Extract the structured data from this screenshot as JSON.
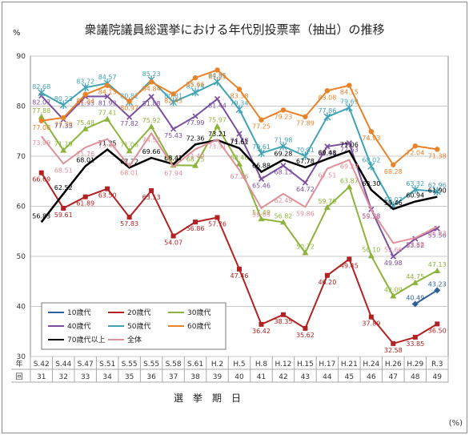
{
  "chart_data": {
    "type": "line",
    "title": "衆議院議員総選挙における年代別投票率（抽出）の推移",
    "ylabel": "%",
    "unit_note": "(%)",
    "x_axis_title": "選　挙　期　日",
    "row_label_nen": "年",
    "row_label_kai": "回",
    "ylim": [
      30,
      90
    ],
    "y_ticks": [
      30,
      40,
      50,
      60,
      70,
      80,
      90
    ],
    "grid": true,
    "legend_position": "bottom-left",
    "years": [
      "S.42",
      "S.44",
      "S.47",
      "S.51",
      "S.55",
      "S.55",
      "S.58",
      "S.61",
      "H.2",
      "H.5",
      "H.8",
      "H.12",
      "H.15",
      "H.17",
      "H.21",
      "H.24",
      "H.26",
      "H.29",
      "R.3"
    ],
    "sessions": [
      "31",
      "32",
      "33",
      "34",
      "35",
      "36",
      "37",
      "38",
      "39",
      "40",
      "41",
      "42",
      "43",
      "44",
      "45",
      "46",
      "47",
      "48",
      "49"
    ],
    "series": [
      {
        "name": "10歳代",
        "color": "#2e5f9e",
        "values": [
          null,
          null,
          null,
          null,
          null,
          null,
          null,
          null,
          null,
          null,
          null,
          null,
          null,
          null,
          null,
          null,
          null,
          40.49,
          43.23
        ]
      },
      {
        "name": "20歳代",
        "color": "#b22222",
        "values": [
          66.69,
          59.61,
          61.89,
          63.5,
          57.83,
          63.13,
          54.07,
          56.86,
          57.76,
          47.46,
          36.42,
          38.35,
          35.62,
          46.2,
          49.45,
          37.89,
          32.58,
          33.85,
          36.5
        ]
      },
      {
        "name": "30歳代",
        "color": "#8db33a",
        "values": [
          77.88,
          71.19,
          75.48,
          77.41,
          71.06,
          75.92,
          68.21,
          68.15,
          75.97,
          68.46,
          57.49,
          56.82,
          50.72,
          59.79,
          63.87,
          50.1,
          42.09,
          44.75,
          47.13
        ]
      },
      {
        "name": "40歳代",
        "color": "#7b4fa0",
        "values": [
          82.07,
          77.33,
          81.93,
          81.93,
          77.82,
          81.88,
          75.43,
          77.99,
          81.44,
          74.48,
          65.46,
          68.13,
          64.72,
          71.94,
          72.63,
          59.38,
          49.98,
          53.52,
          55.56
        ]
      },
      {
        "name": "50歳代",
        "color": "#3fa3b5",
        "values": [
          82.68,
          80.23,
          83.72,
          84.57,
          80.82,
          85.23,
          80.81,
          82.74,
          84.85,
          79.34,
          70.61,
          71.98,
          70.01,
          77.86,
          79.69,
          68.02,
          60.07,
          63.32,
          62.96
        ]
      },
      {
        "name": "60歳代",
        "color": "#e8832a",
        "values": [
          77.08,
          77.7,
          82.34,
          84.13,
          80.97,
          84.84,
          82.43,
          85.66,
          87.21,
          83.38,
          77.25,
          79.23,
          77.89,
          83.08,
          84.15,
          74.93,
          68.28,
          72.04,
          71.38
        ]
      },
      {
        "name": "70歳代以上",
        "color": "#000000",
        "values": [
          56.83,
          62.52,
          68.01,
          71.35,
          67.72,
          69.66,
          68.41,
          72.36,
          73.21,
          71.61,
          66.88,
          69.28,
          67.78,
          69.48,
          71.06,
          63.3,
          59.46,
          60.94,
          61.9
        ]
      },
      {
        "name": "全体",
        "color": "#e0909a",
        "values": [
          73.99,
          68.51,
          71.76,
          73.45,
          68.01,
          74.57,
          67.94,
          71.4,
          73.31,
          67.26,
          59.65,
          62.49,
          59.86,
          67.51,
          69.28,
          59.32,
          52.66,
          53.68,
          55.93
        ]
      }
    ]
  }
}
